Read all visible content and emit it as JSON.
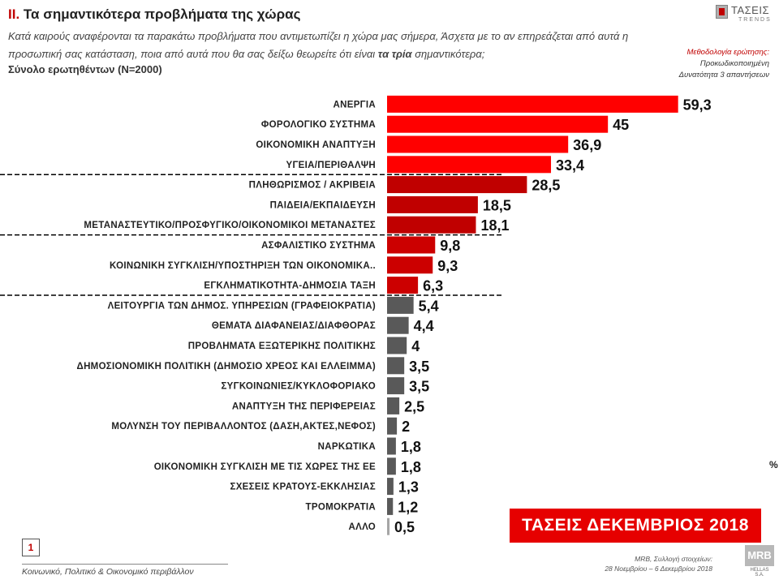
{
  "header": {
    "title_roman": "ΙΙ.",
    "title_text": "Τα σημαντικότερα προβλήματα της χώρας",
    "subtitle_part1": "Κατά καιρούς αναφέρονται τα παρακάτω προβλήματα που αντιμετωπίζει η χώρα μας σήμερα, Άσχετα με το αν επηρεάζεται από αυτά η προσωπική σας κατάσταση, ποια από αυτά που θα σας δείξω θεωρείτε ότι είναι",
    "subtitle_emphasis": "τα τρία",
    "subtitle_part2": "σημαντικότερα;",
    "sample": "Σύνολο ερωτηθέντων (Ν=2000)"
  },
  "logo": {
    "name": "ΤΑΣΕΙΣ",
    "sub": "TRENDS"
  },
  "methodology": {
    "title": "Μεθοδολογία ερώτησης:",
    "line1": "Προκωδικοποιημένη",
    "line2": "Δυνατότητα 3 απαντήσεων"
  },
  "chart_data": {
    "type": "bar",
    "orientation": "horizontal",
    "categories": [
      "ΑΝΕΡΓΙΑ",
      "ΦΟΡΟΛΟΓΙΚΟ ΣΥΣΤΗΜΑ",
      "ΟΙΚΟΝΟΜΙΚΗ ΑΝΑΠΤΥΞΗ",
      "ΥΓΕΙΑ/ΠΕΡΙΘΑΛΨΗ",
      "ΠΛΗΘΩΡΙΣΜΟΣ / ΑΚΡΙΒΕΙΑ",
      "ΠΑΙΔΕΙΑ/ΕΚΠΑΙΔΕΥΣΗ",
      "ΜΕΤΑΝΑΣΤΕΥΤΙΚΟ/ΠΡΟΣΦΥΓΙΚΟ/ΟΙΚΟΝΟΜΙΚΟΙ ΜΕΤΑΝΑΣΤΕΣ",
      "ΑΣΦΑΛΙΣΤΙΚΟ ΣΥΣΤΗΜΑ",
      "ΚΟΙΝΩΝΙΚΗ ΣΥΓΚΛΙΣΗ/ΥΠΟΣΤΗΡΙΞΗ ΤΩΝ ΟΙΚΟΝΟΜΙΚΑ..",
      "ΕΓΚΛΗΜΑΤΙΚΟΤΗΤΑ-ΔΗΜΟΣΙΑ ΤΑΞΗ",
      "ΛΕΙΤΟΥΡΓΙΑ ΤΩΝ ΔΗΜΟΣ. ΥΠΗΡΕΣΙΩΝ (ΓΡΑΦΕΙΟΚΡΑΤΙΑ)",
      "ΘΕΜΑΤΑ ΔΙΑΦΑΝΕΙΑΣ/ΔΙΑΦΘΟΡΑΣ",
      "ΠΡΟΒΛΗΜΑΤΑ ΕΞΩΤΕΡΙΚΗΣ ΠΟΛΙΤΙΚΗΣ",
      "ΔΗΜΟΣΙΟΝΟΜΙΚΗ ΠΟΛΙΤΙΚΗ (ΔΗΜΟΣΙΟ ΧΡΕΟΣ ΚΑΙ ΕΛΛΕΙΜΜΑ)",
      "ΣΥΓΚΟΙΝΩΝΙΕΣ/ΚΥΚΛΟΦΟΡΙΑΚΟ",
      "ΑΝΑΠΤΥΞΗ ΤΗΣ ΠΕΡΙΦΕΡΕΙΑΣ",
      "ΜΟΛΥΝΣΗ ΤΟΥ ΠΕΡΙΒΑΛΛΟΝΤΟΣ (ΔΑΣΗ,ΑΚΤΕΣ,ΝΕΦΟΣ)",
      "ΝΑΡΚΩΤΙΚΑ",
      "ΟΙΚΟΝΟΜΙΚΗ ΣΥΓΚΛΙΣΗ ΜΕ ΤΙΣ ΧΩΡΕΣ ΤΗΣ ΕΕ",
      "ΣΧΕΣΕΙΣ ΚΡΑΤΟΥΣ-ΕΚΚΛΗΣΙΑΣ",
      "ΤΡΟΜΟΚΡΑΤΙΑ",
      "ΑΛΛΟ"
    ],
    "values": [
      59.3,
      45,
      36.9,
      33.4,
      28.5,
      18.5,
      18.1,
      9.8,
      9.3,
      6.3,
      5.4,
      4.4,
      4,
      3.5,
      3.5,
      2.5,
      2,
      1.8,
      1.8,
      1.3,
      1.2,
      0.5
    ],
    "value_labels": [
      "59,3",
      "45",
      "36,9",
      "33,4",
      "28,5",
      "18,5",
      "18,1",
      "9,8",
      "9,3",
      "6,3",
      "5,4",
      "4,4",
      "4",
      "3,5",
      "3,5",
      "2,5",
      "2",
      "1,8",
      "1,8",
      "1,3",
      "1,2",
      "0,5"
    ],
    "bar_colors": [
      "#ff0000",
      "#ff0000",
      "#ff0000",
      "#ff0000",
      "#c00000",
      "#c00000",
      "#c00000",
      "#cc0000",
      "#cc0000",
      "#cc0000",
      "#595959",
      "#595959",
      "#595959",
      "#595959",
      "#595959",
      "#595959",
      "#595959",
      "#595959",
      "#595959",
      "#595959",
      "#595959",
      "#a6a6a6"
    ],
    "group_dividers_after_index": [
      3,
      6,
      9
    ],
    "unit": "%",
    "xlim": [
      0,
      62
    ],
    "grid": false,
    "legend": "none"
  },
  "stamp": "ΤΑΣΕΙΣ ΔΕΚΕΜΒΡΙΟΣ 2018",
  "footer": {
    "page_number": "1",
    "section": "Κοινωνικό, Πολιτικό & Οικονομικό περιβάλλον",
    "source_line1": "MRB, Συλλογή στοιχείων:",
    "source_line2": "28 Νοεμβρίου – 6 Δεκεμβρίου 2018",
    "company_mark": "MRB",
    "company_sub": "HELLAS S.A."
  }
}
